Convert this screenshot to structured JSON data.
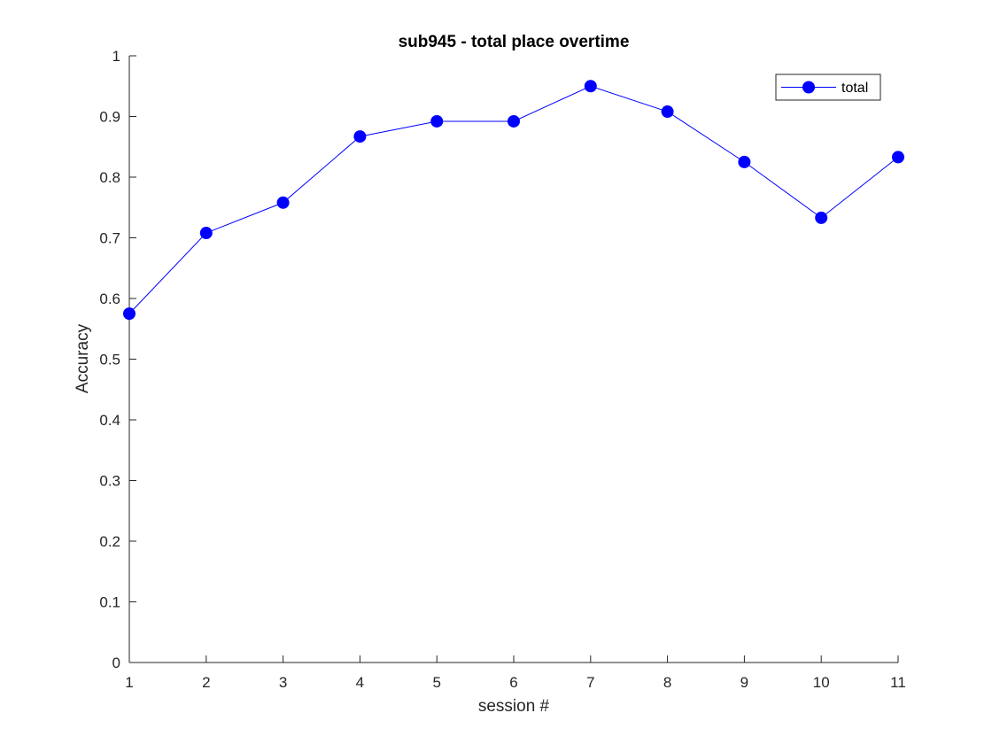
{
  "chart_data": {
    "type": "line",
    "title": "sub945 - total place overtime",
    "xlabel": "session #",
    "ylabel": "Accuracy",
    "x": [
      1,
      2,
      3,
      4,
      5,
      6,
      7,
      8,
      9,
      10,
      11
    ],
    "xlim": [
      1,
      11
    ],
    "ylim": [
      0,
      1
    ],
    "xticks": [
      "1",
      "2",
      "3",
      "4",
      "5",
      "6",
      "7",
      "8",
      "9",
      "10",
      "11"
    ],
    "yticks": [
      "0",
      "0.1",
      "0.2",
      "0.3",
      "0.4",
      "0.5",
      "0.6",
      "0.7",
      "0.8",
      "0.9",
      "1"
    ],
    "grid": false,
    "legend_position": "top-right",
    "series": [
      {
        "name": "total",
        "color": "#0000ff",
        "marker": "filled-circle",
        "values": [
          0.575,
          0.708,
          0.758,
          0.867,
          0.892,
          0.892,
          0.95,
          0.908,
          0.825,
          0.733,
          0.833
        ]
      }
    ]
  }
}
